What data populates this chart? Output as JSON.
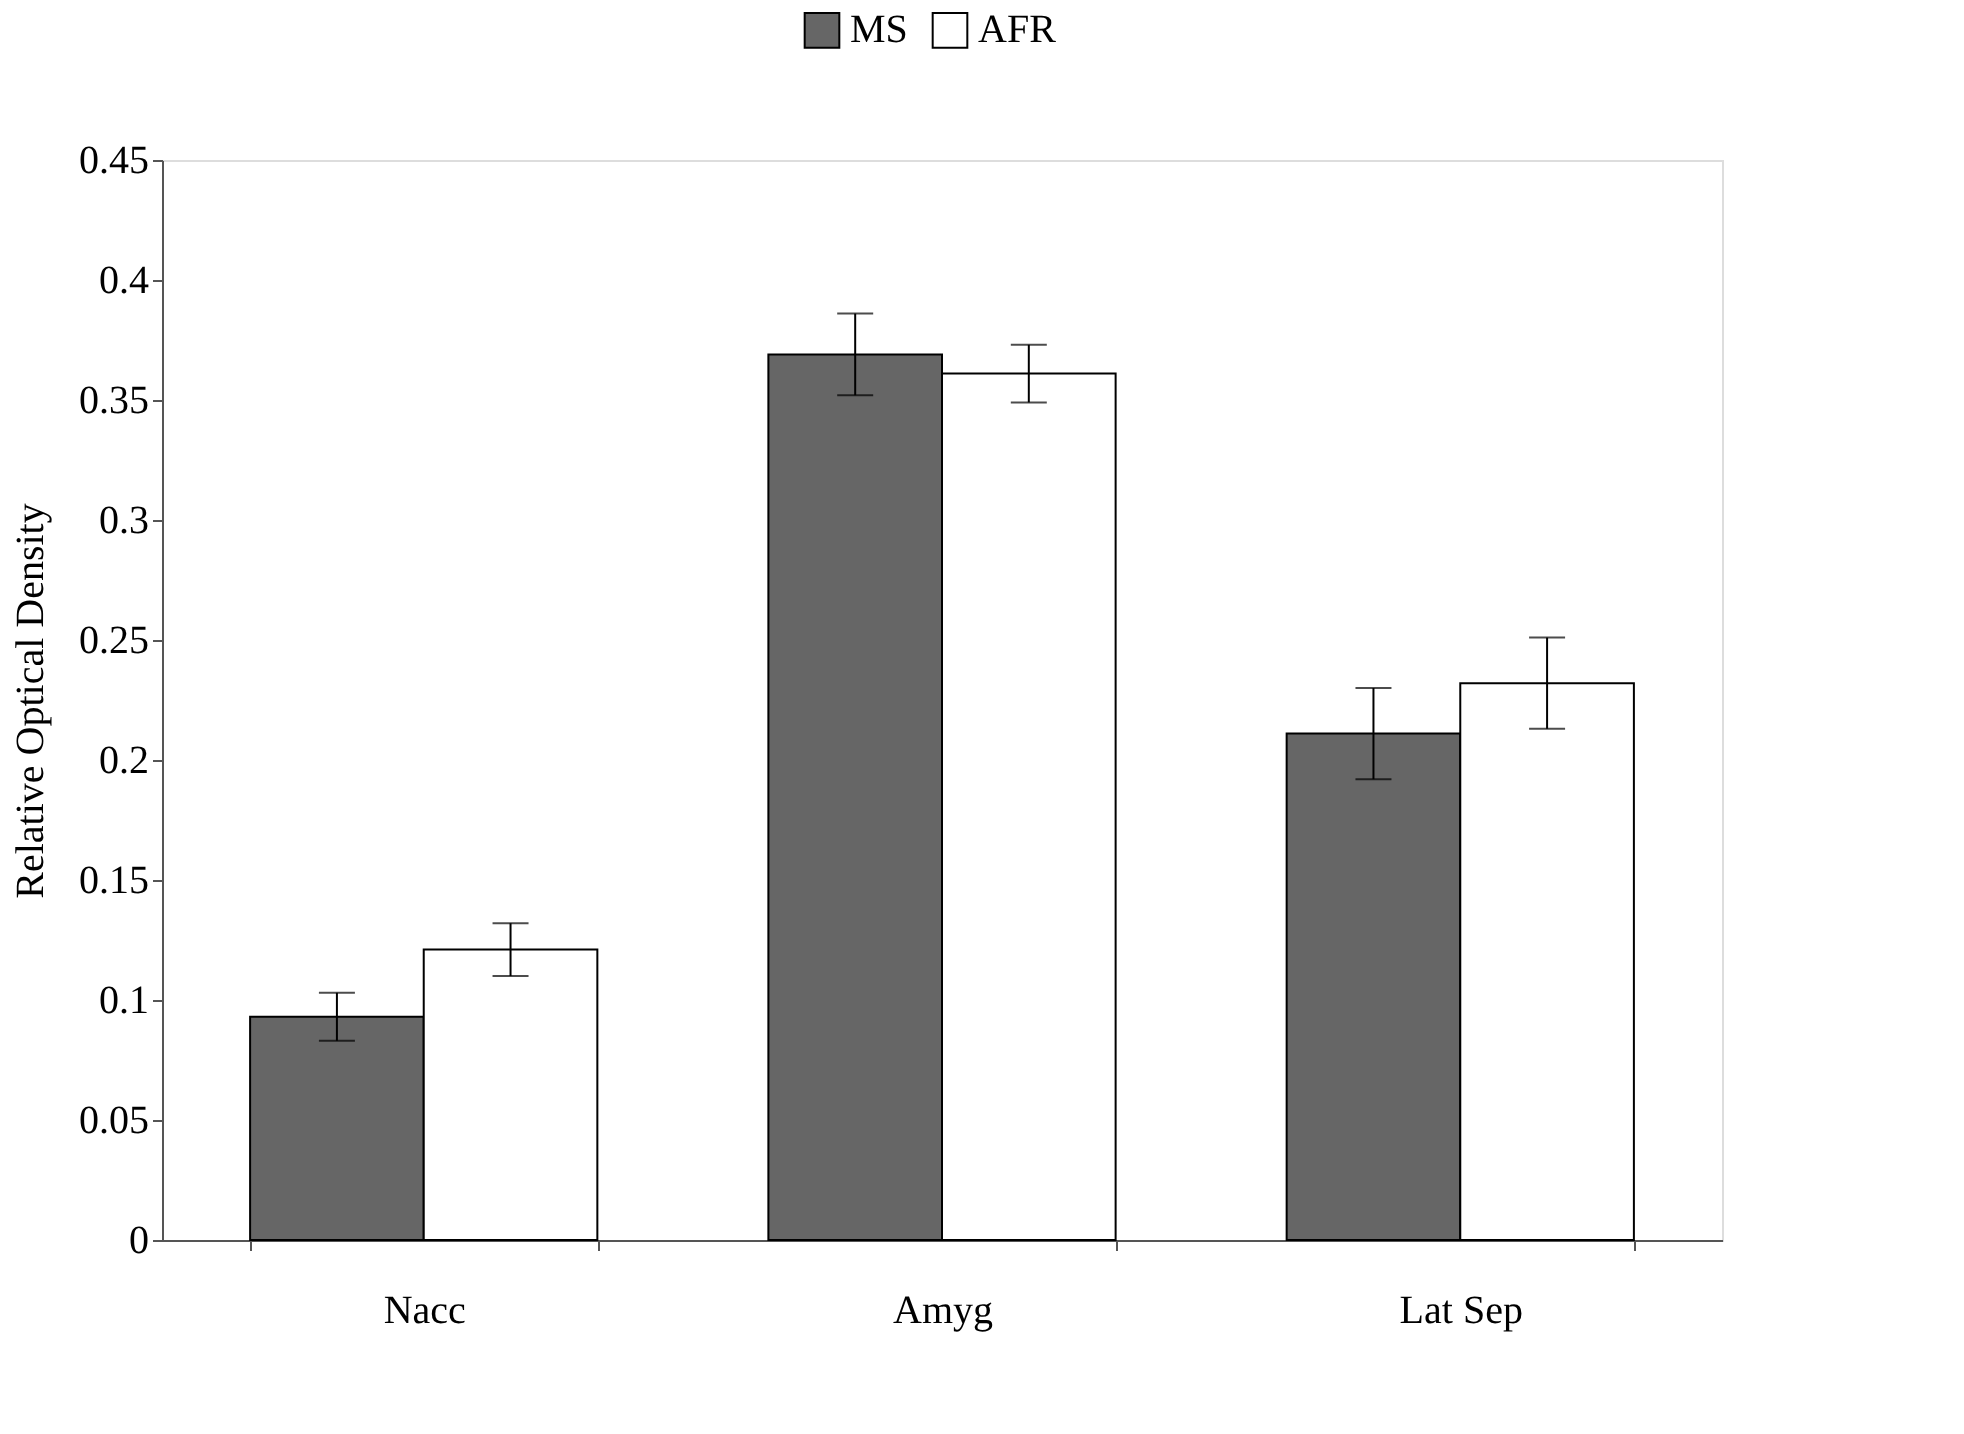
{
  "chart_data": {
    "type": "bar",
    "ylabel": "Relative Optical Density",
    "categories": [
      "Nacc",
      "Amyg",
      "Lat Sep"
    ],
    "series": [
      {
        "name": "MS",
        "color": "#666666",
        "values": [
          0.093,
          0.369,
          0.211
        ],
        "errors": [
          0.01,
          0.017,
          0.019
        ]
      },
      {
        "name": "AFR",
        "color": "#ffffff",
        "values": [
          0.121,
          0.361,
          0.232
        ],
        "errors": [
          0.011,
          0.012,
          0.019
        ]
      }
    ],
    "ylim": [
      0,
      0.45
    ],
    "yticks": [
      0,
      0.05,
      0.1,
      0.15,
      0.2,
      0.25,
      0.3,
      0.35,
      0.4,
      0.45
    ],
    "grid": false,
    "legend": "top"
  }
}
